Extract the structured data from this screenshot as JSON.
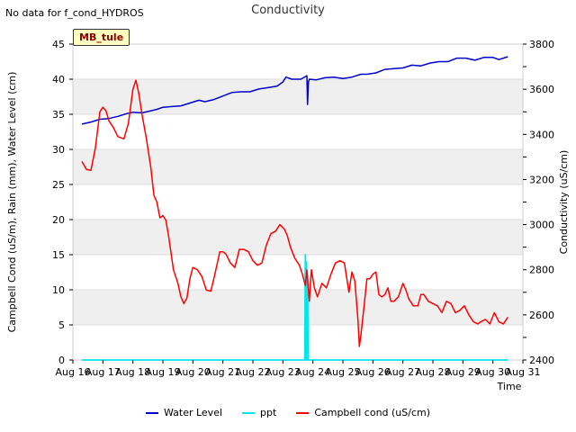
{
  "header": {
    "no_data_note": "No data for f_cond_HYDROS",
    "site_badge": "MB_tule"
  },
  "chart_data": {
    "type": "line",
    "title": "Conductivity",
    "xlabel": "Time",
    "ylabel": "Campbell Cond (uS/m), Rain (mm), Water Level (cm)",
    "y2label": "Conductivity (uS/cm)",
    "x_ticks": [
      "Aug 16",
      "Aug 17",
      "Aug 18",
      "Aug 19",
      "Aug 20",
      "Aug 21",
      "Aug 22",
      "Aug 23",
      "Aug 24",
      "Aug 25",
      "Aug 26",
      "Aug 27",
      "Aug 28",
      "Aug 29",
      "Aug 30",
      "Aug 31"
    ],
    "xlim": [
      0,
      15
    ],
    "ylim": [
      0,
      45
    ],
    "y_ticks": [
      0,
      5,
      10,
      15,
      20,
      25,
      30,
      35,
      40,
      45
    ],
    "y2lim": [
      2400,
      3800
    ],
    "y2_ticks": [
      2400,
      2600,
      2800,
      3000,
      3200,
      3400,
      3600,
      3800
    ],
    "series": [
      {
        "name": "Water Level",
        "axis": "left",
        "color": "#0000cc",
        "x": [
          0.3,
          0.6,
          0.9,
          1.2,
          1.5,
          1.8,
          2.0,
          2.3,
          2.6,
          2.8,
          3.0,
          3.3,
          3.6,
          3.9,
          4.2,
          4.4,
          4.7,
          5.0,
          5.3,
          5.6,
          5.9,
          6.2,
          6.5,
          6.8,
          7.0,
          7.1,
          7.3,
          7.6,
          7.8,
          7.82,
          7.85,
          7.88,
          8.1,
          8.4,
          8.7,
          9.0,
          9.3,
          9.6,
          9.8,
          10.1,
          10.4,
          10.7,
          11.0,
          11.3,
          11.6,
          11.9,
          12.2,
          12.5,
          12.8,
          13.1,
          13.4,
          13.7,
          14.0,
          14.2,
          14.5
        ],
        "values": [
          33.6,
          33.9,
          34.3,
          34.4,
          34.7,
          35.1,
          35.3,
          35.2,
          35.5,
          35.7,
          36.0,
          36.1,
          36.2,
          36.6,
          37.0,
          36.8,
          37.1,
          37.6,
          38.1,
          38.2,
          38.2,
          38.6,
          38.8,
          39.0,
          39.6,
          40.3,
          40.0,
          40.0,
          40.5,
          36.4,
          39.6,
          40.0,
          39.9,
          40.2,
          40.3,
          40.1,
          40.3,
          40.7,
          40.7,
          40.9,
          41.4,
          41.5,
          41.6,
          42.0,
          41.9,
          42.3,
          42.5,
          42.5,
          43.0,
          43.0,
          42.7,
          43.1,
          43.1,
          42.8,
          43.2
        ]
      },
      {
        "name": "ppt",
        "axis": "left",
        "color": "#00e5ee",
        "x": [
          0.3,
          7.73,
          7.75,
          7.76,
          7.78,
          7.8,
          7.82,
          7.84,
          7.86,
          14.5
        ],
        "values": [
          0,
          0,
          15,
          0,
          14,
          0,
          12,
          0,
          0,
          0
        ]
      },
      {
        "name": "Campbell cond (uS/cm)",
        "axis": "right",
        "color": "#ff0000",
        "x": [
          0.3,
          0.45,
          0.6,
          0.75,
          0.9,
          1.0,
          1.1,
          1.2,
          1.35,
          1.5,
          1.7,
          1.85,
          2.0,
          2.1,
          2.2,
          2.3,
          2.45,
          2.6,
          2.7,
          2.8,
          2.9,
          3.0,
          3.1,
          3.2,
          3.35,
          3.5,
          3.6,
          3.7,
          3.8,
          3.9,
          4.0,
          4.15,
          4.3,
          4.45,
          4.6,
          4.75,
          4.9,
          5.0,
          5.1,
          5.25,
          5.4,
          5.55,
          5.7,
          5.85,
          6.0,
          6.15,
          6.3,
          6.45,
          6.6,
          6.75,
          6.9,
          7.05,
          7.15,
          7.25,
          7.4,
          7.55,
          7.65,
          7.75,
          7.8,
          7.88,
          7.95,
          8.05,
          8.15,
          8.3,
          8.45,
          8.6,
          8.75,
          8.9,
          9.05,
          9.2,
          9.3,
          9.4,
          9.5,
          9.55,
          9.6,
          9.7,
          9.8,
          9.9,
          10.0,
          10.1,
          10.2,
          10.3,
          10.4,
          10.5,
          10.6,
          10.7,
          10.85,
          11.0,
          11.1,
          11.2,
          11.35,
          11.5,
          11.6,
          11.7,
          11.85,
          12.0,
          12.15,
          12.3,
          12.45,
          12.6,
          12.75,
          12.9,
          13.05,
          13.2,
          13.35,
          13.5,
          13.6,
          13.75,
          13.9,
          14.05,
          14.2,
          14.35,
          14.5
        ],
        "values": [
          3280,
          3245,
          3240,
          3340,
          3500,
          3520,
          3505,
          3460,
          3430,
          3390,
          3380,
          3450,
          3600,
          3640,
          3580,
          3490,
          3380,
          3250,
          3130,
          3100,
          3030,
          3040,
          3020,
          2940,
          2800,
          2740,
          2680,
          2650,
          2675,
          2760,
          2810,
          2800,
          2770,
          2710,
          2705,
          2790,
          2880,
          2880,
          2870,
          2830,
          2810,
          2890,
          2890,
          2880,
          2840,
          2820,
          2830,
          2910,
          2960,
          2970,
          3000,
          2980,
          2950,
          2900,
          2850,
          2820,
          2780,
          2730,
          2800,
          2660,
          2800,
          2720,
          2680,
          2740,
          2720,
          2780,
          2830,
          2840,
          2830,
          2700,
          2790,
          2750,
          2580,
          2460,
          2510,
          2630,
          2760,
          2760,
          2780,
          2790,
          2690,
          2680,
          2690,
          2720,
          2660,
          2660,
          2680,
          2740,
          2710,
          2670,
          2640,
          2640,
          2690,
          2690,
          2660,
          2650,
          2640,
          2610,
          2660,
          2650,
          2610,
          2620,
          2640,
          2600,
          2570,
          2560,
          2570,
          2580,
          2560,
          2610,
          2570,
          2560,
          2590
        ]
      }
    ],
    "bands": "alternating light gray horizontal bands between gridlines",
    "legend_position": "bottom-center"
  }
}
